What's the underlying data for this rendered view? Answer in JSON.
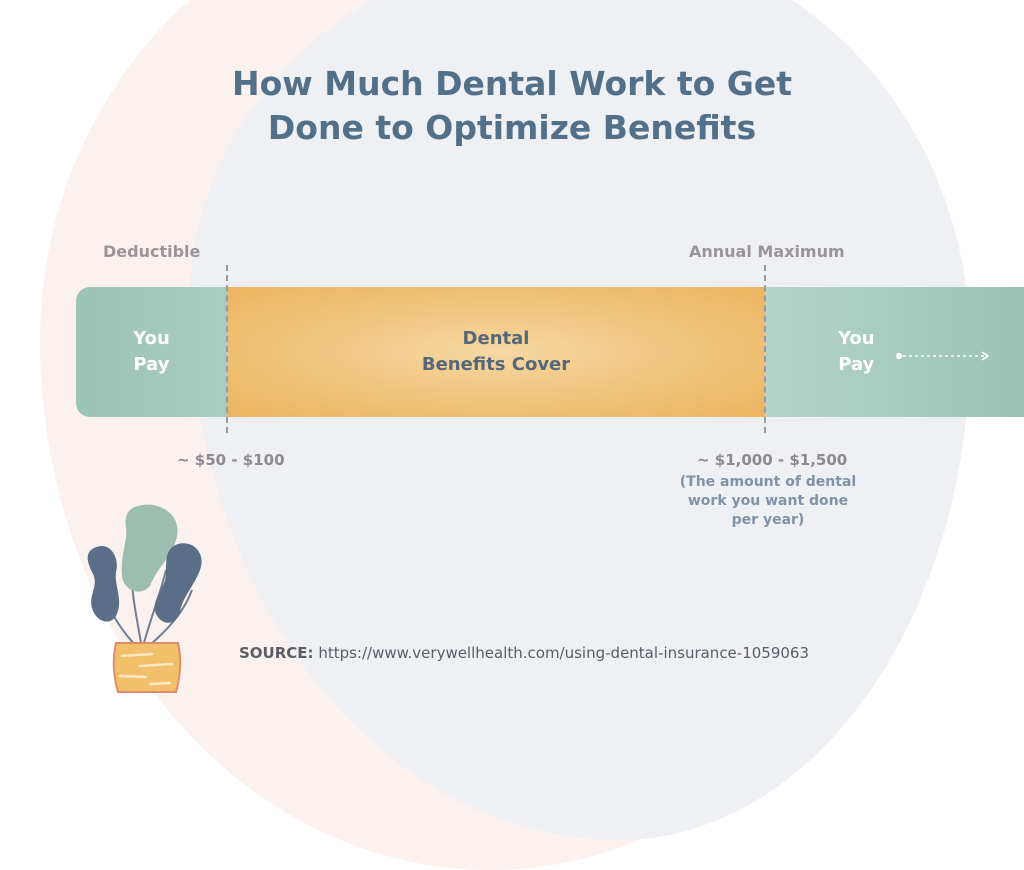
{
  "title": {
    "line1": "How Much Dental Work to Get",
    "line2": "Done to Optimize Benefits"
  },
  "markers": {
    "deductible": "Deductible",
    "annual_maximum": "Annual Maximum"
  },
  "segments": {
    "left": {
      "line1": "You",
      "line2": "Pay"
    },
    "middle": {
      "line1": "Dental",
      "line2": "Benefits Cover"
    },
    "right": {
      "line1": "You",
      "line2": "Pay"
    }
  },
  "amounts": {
    "deductible": "~ $50 - $100",
    "annual_maximum": "~ $1,000 - $1,500",
    "note_line1": "(The amount of dental",
    "note_line2": "work you want done",
    "note_line3": "per year)"
  },
  "source": {
    "label": "SOURCE:",
    "url": "https://www.verywellhealth.com/using-dental-insurance-1059063"
  },
  "colors": {
    "title": "#53708a",
    "you_pay": "#9dc3b6",
    "benefits": "#ebb460",
    "plant_leaf_dark": "#5a6e88",
    "plant_leaf_light": "#9dbdb0",
    "pot": "#f2bf6a"
  }
}
